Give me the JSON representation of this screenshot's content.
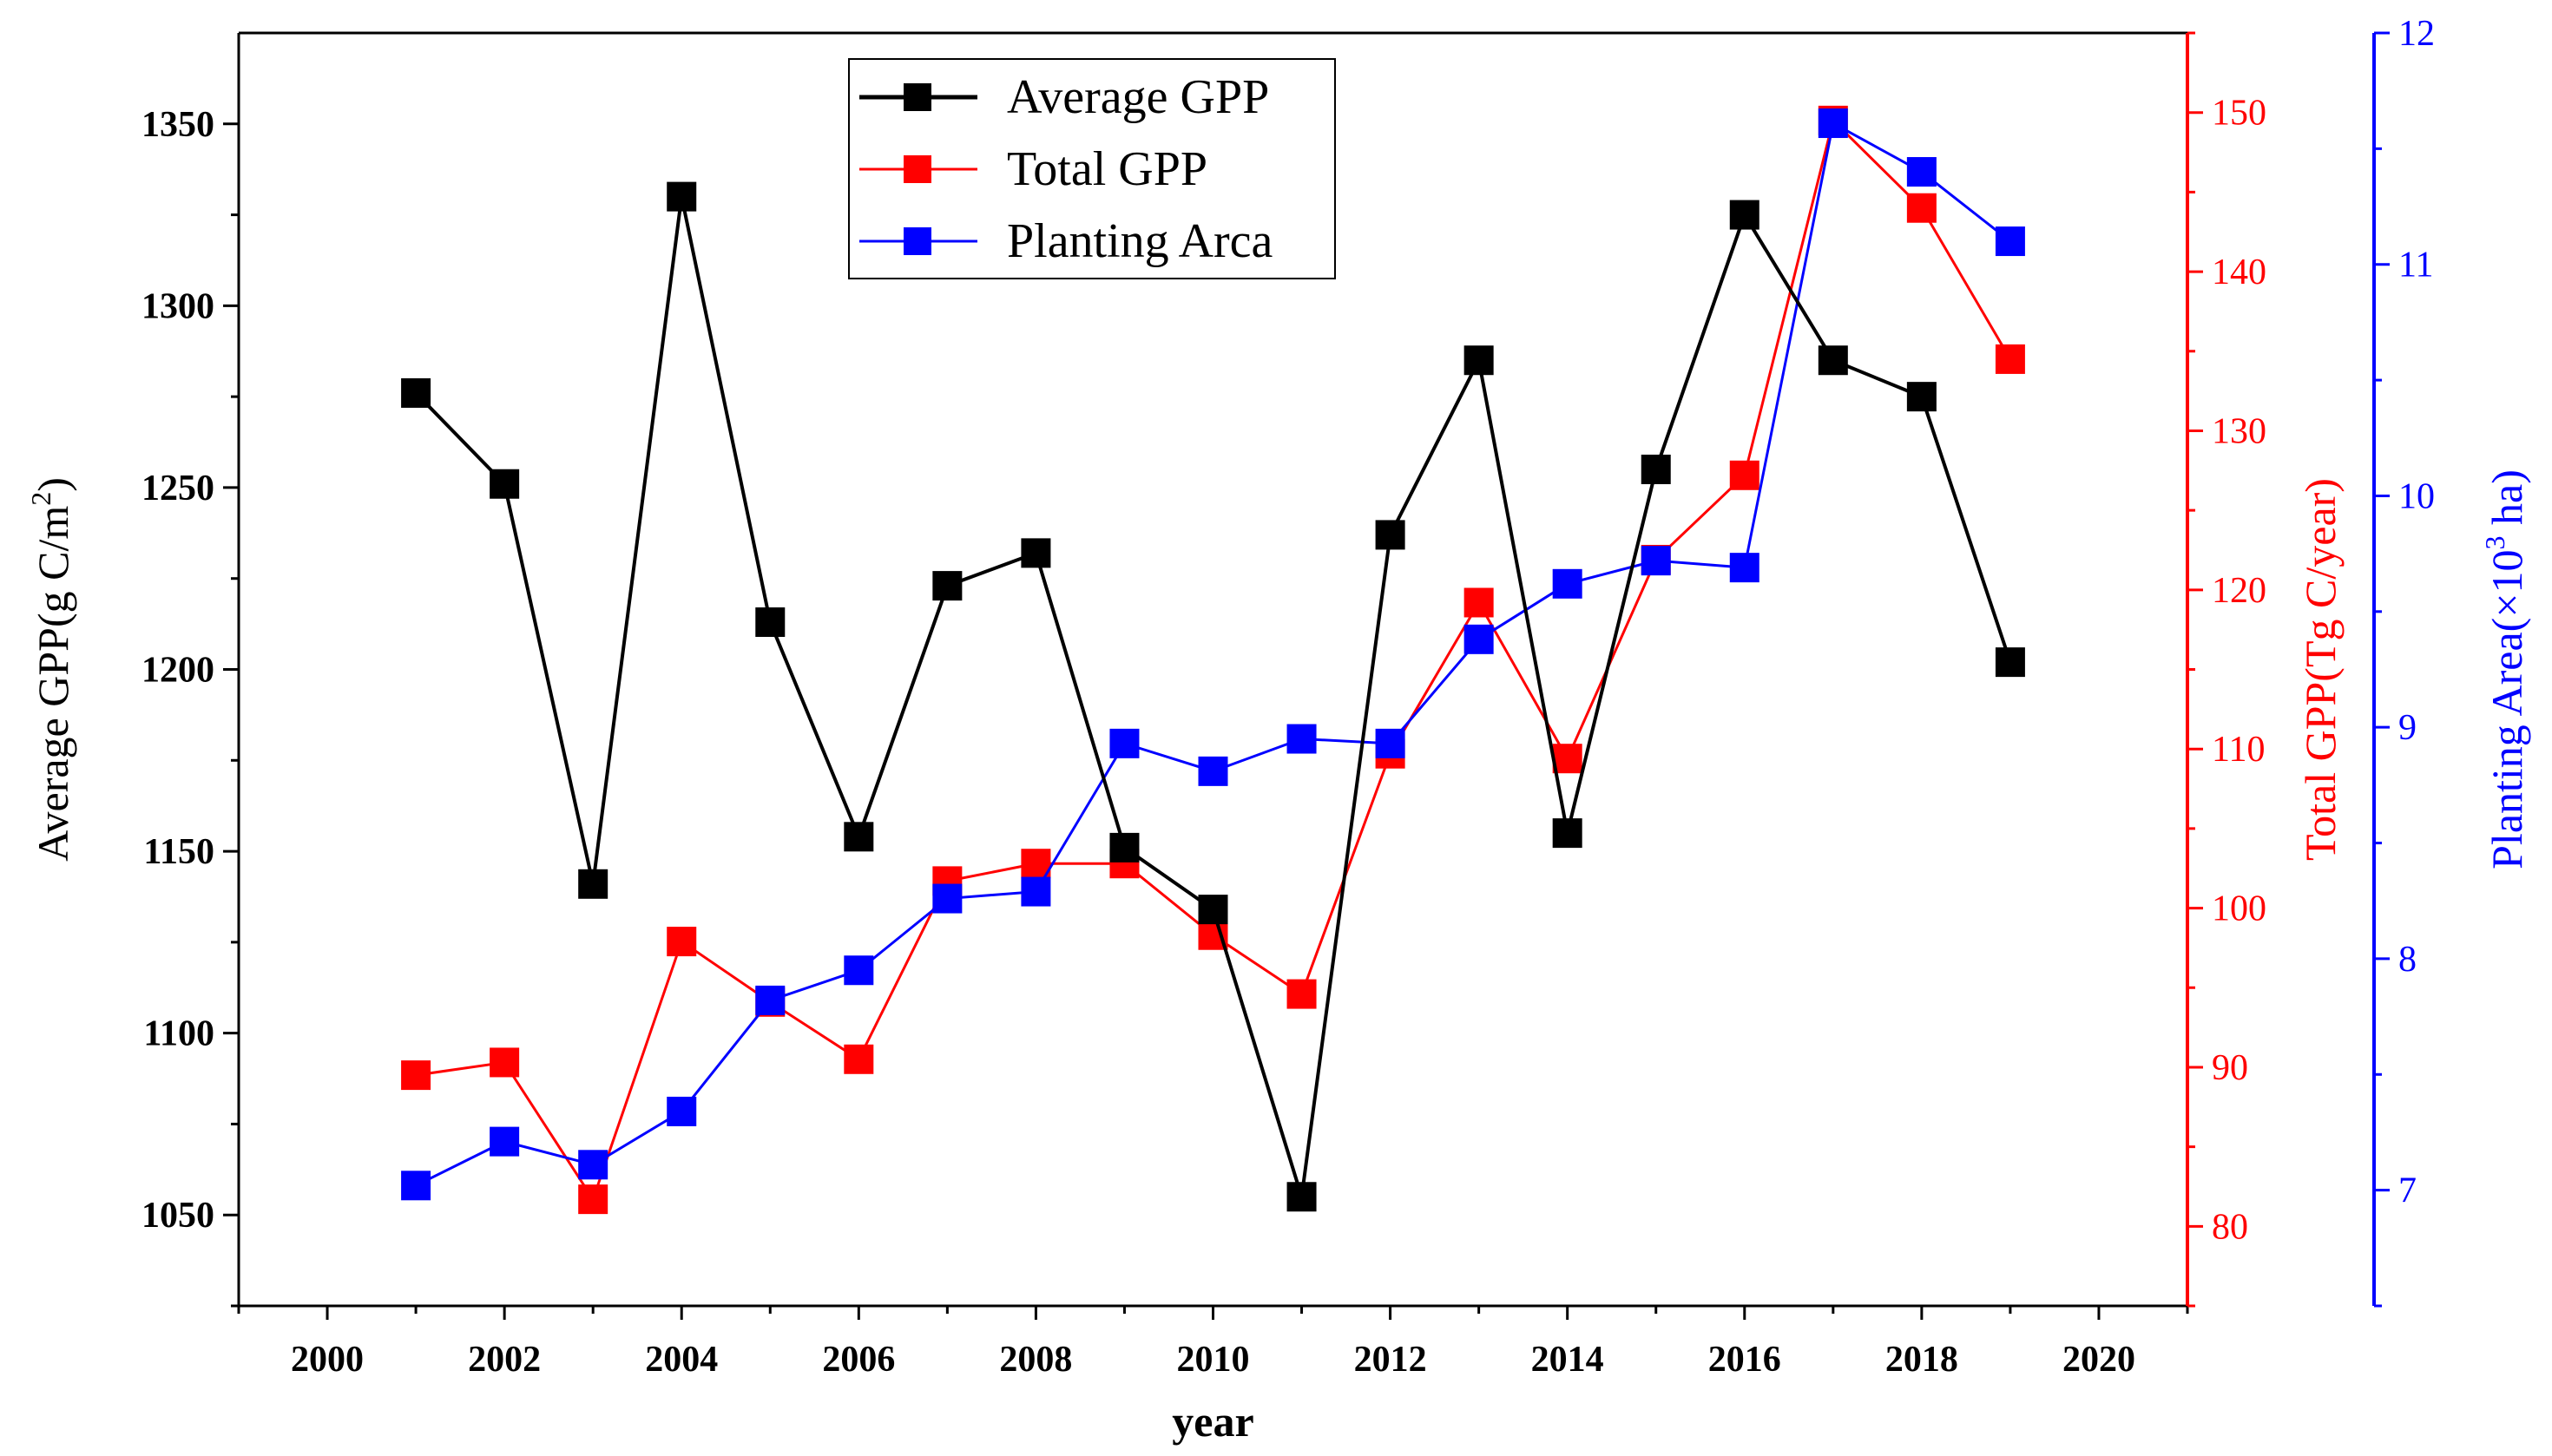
{
  "chart_data": {
    "type": "line",
    "x": [
      2001,
      2002,
      2003,
      2004,
      2005,
      2006,
      2007,
      2008,
      2009,
      2010,
      2011,
      2012,
      2013,
      2014,
      2015,
      2016,
      2017,
      2018,
      2019
    ],
    "xlabel": "year",
    "xlim": [
      1999,
      2021
    ],
    "xticks": [
      2000,
      2002,
      2004,
      2006,
      2008,
      2010,
      2012,
      2014,
      2016,
      2018,
      2020
    ],
    "axes": {
      "left": {
        "label_pre": "Average GPP(g C/m",
        "label_sup": "2",
        "label_post": ")",
        "ylim": [
          1025,
          1375
        ],
        "ticks": [
          1050,
          1100,
          1150,
          1200,
          1250,
          1300,
          1350
        ],
        "color": "#000000"
      },
      "right1": {
        "label": "Total GPP(Tg C/year)",
        "ylim": [
          75,
          155
        ],
        "ticks": [
          80,
          90,
          100,
          110,
          120,
          130,
          140,
          150
        ],
        "color": "#ff0000"
      },
      "right2": {
        "label_pre": "Planting Area(×10",
        "label_sup": "3",
        "label_post": " ha)",
        "ylim": [
          6.5,
          12
        ],
        "ticks": [
          7,
          8,
          9,
          10,
          11,
          12
        ],
        "color": "#0000ff"
      }
    },
    "series": [
      {
        "name": "Average GPP",
        "axis": "left",
        "color": "#000000",
        "values": [
          1276,
          1251,
          1141,
          1330,
          1213,
          1154,
          1223,
          1232,
          1151,
          1134,
          1055,
          1237,
          1285,
          1155,
          1255,
          1325,
          1285,
          1275,
          1202
        ]
      },
      {
        "name": "Total GPP",
        "axis": "right1",
        "color": "#ff0000",
        "values": [
          89.5,
          90.3,
          81.7,
          97.9,
          94.1,
          90.5,
          101.7,
          102.8,
          102.8,
          98.3,
          94.6,
          109.7,
          119.2,
          109.4,
          121.9,
          127.2,
          149.5,
          144.0,
          134.5
        ]
      },
      {
        "name": "Planting Arca",
        "axis": "right2",
        "color": "#0000ff",
        "values": [
          7.02,
          7.21,
          7.11,
          7.34,
          7.82,
          7.95,
          8.26,
          8.29,
          8.93,
          8.81,
          8.95,
          8.93,
          9.38,
          9.62,
          9.72,
          9.69,
          11.61,
          11.4,
          11.1
        ]
      }
    ],
    "legend": {
      "position": "top-left",
      "entries": [
        "Average GPP",
        "Total GPP",
        "Planting Arca"
      ]
    }
  }
}
